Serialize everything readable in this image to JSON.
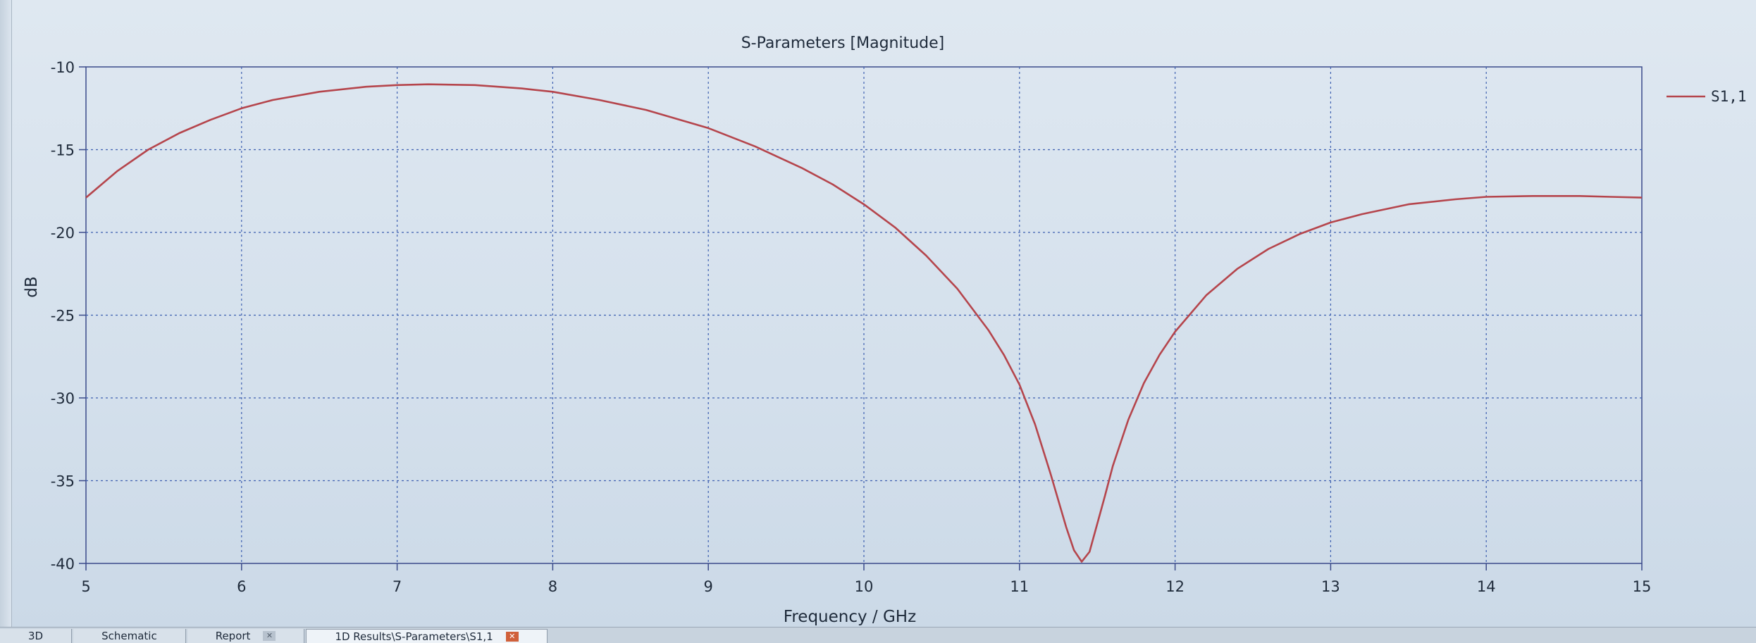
{
  "chart_data": {
    "type": "line",
    "title": "S-Parameters [Magnitude]",
    "xlabel": "Frequency / GHz",
    "ylabel": "dB",
    "xlim": [
      5,
      15
    ],
    "ylim": [
      -40,
      -10
    ],
    "xticks": [
      5,
      6,
      7,
      8,
      9,
      10,
      11,
      12,
      13,
      14,
      15
    ],
    "yticks": [
      -10,
      -15,
      -20,
      -25,
      -30,
      -35,
      -40
    ],
    "grid": true,
    "legend_position": "right",
    "series": [
      {
        "name": "S1,1",
        "color": "#b5454c",
        "x": [
          5.0,
          5.2,
          5.4,
          5.6,
          5.8,
          6.0,
          6.2,
          6.5,
          6.8,
          7.0,
          7.2,
          7.5,
          7.8,
          8.0,
          8.3,
          8.6,
          9.0,
          9.3,
          9.6,
          9.8,
          10.0,
          10.2,
          10.4,
          10.6,
          10.8,
          10.9,
          11.0,
          11.1,
          11.2,
          11.3,
          11.35,
          11.4,
          11.45,
          11.5,
          11.55,
          11.6,
          11.7,
          11.8,
          11.9,
          12.0,
          12.2,
          12.4,
          12.6,
          12.8,
          13.0,
          13.2,
          13.5,
          13.8,
          14.0,
          14.3,
          14.6,
          14.8,
          15.0
        ],
        "y": [
          -17.9,
          -16.3,
          -15.0,
          -14.0,
          -13.2,
          -12.5,
          -12.0,
          -11.5,
          -11.2,
          -11.1,
          -11.05,
          -11.1,
          -11.3,
          -11.5,
          -12.0,
          -12.6,
          -13.7,
          -14.8,
          -16.1,
          -17.1,
          -18.3,
          -19.7,
          -21.4,
          -23.4,
          -25.9,
          -27.4,
          -29.2,
          -31.6,
          -34.6,
          -37.8,
          -39.2,
          -39.9,
          -39.3,
          -37.6,
          -35.9,
          -34.1,
          -31.3,
          -29.1,
          -27.4,
          -26.0,
          -23.8,
          -22.2,
          -21.0,
          -20.1,
          -19.4,
          -18.9,
          -18.3,
          -18.0,
          -17.85,
          -17.8,
          -17.8,
          -17.85,
          -17.9
        ]
      }
    ]
  },
  "tabs": [
    {
      "label": "3D",
      "close": false,
      "active": false
    },
    {
      "label": "Schematic",
      "close": false,
      "active": false
    },
    {
      "label": "Report",
      "close": true,
      "active": false
    },
    {
      "label": "1D Results\\S-Parameters\\S1,1",
      "close": true,
      "active": true
    }
  ]
}
